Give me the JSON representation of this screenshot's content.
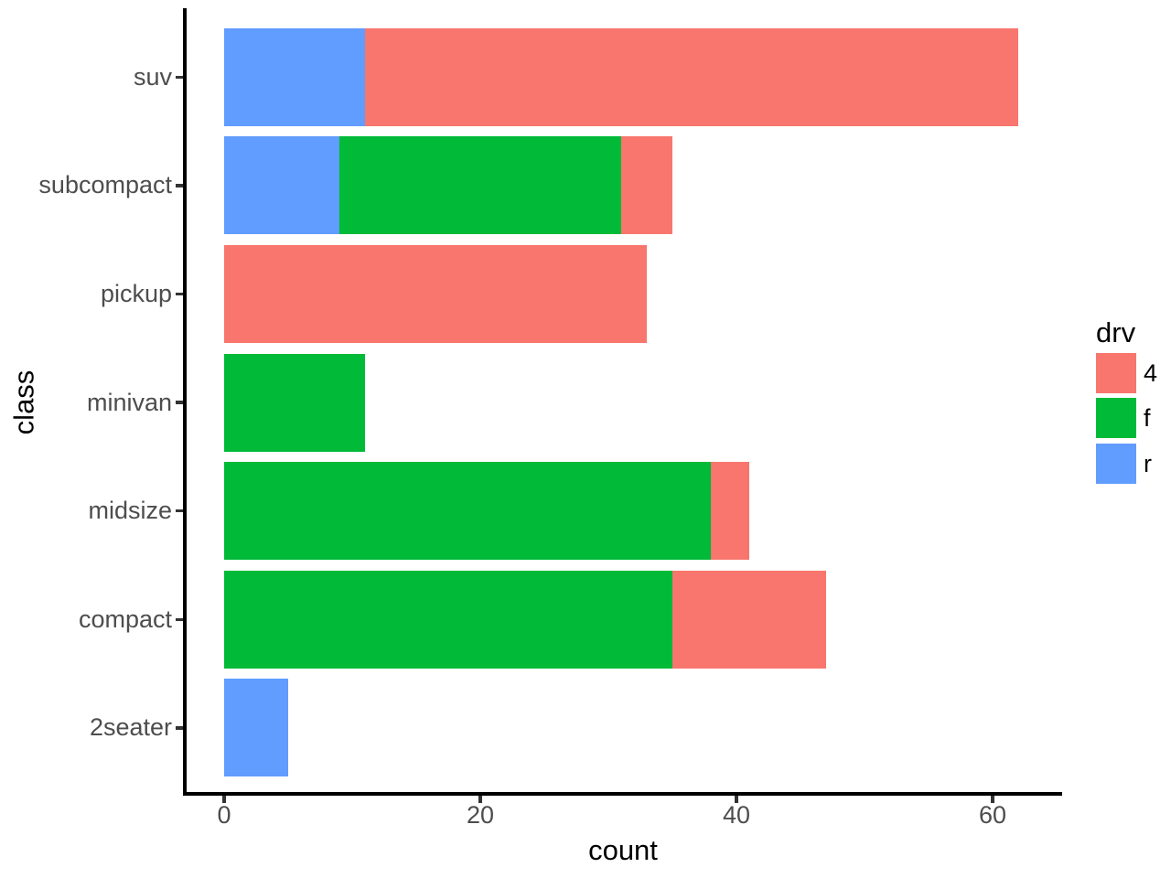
{
  "chart_data": {
    "type": "bar",
    "orientation": "horizontal",
    "stacked": true,
    "title": "",
    "xlabel": "count",
    "ylabel": "class",
    "xlim": [
      0,
      65
    ],
    "x_ticks": [
      0,
      20,
      40,
      60
    ],
    "grid": false,
    "background": "#ffffff",
    "categories": [
      "suv",
      "subcompact",
      "pickup",
      "minivan",
      "midsize",
      "compact",
      "2seater"
    ],
    "series": [
      {
        "name": "4",
        "color": "#F8766D",
        "values": [
          51,
          4,
          33,
          0,
          3,
          12,
          0
        ]
      },
      {
        "name": "f",
        "color": "#00BA38",
        "values": [
          0,
          22,
          0,
          11,
          38,
          35,
          0
        ]
      },
      {
        "name": "r",
        "color": "#619CFF",
        "values": [
          11,
          9,
          0,
          0,
          0,
          0,
          5
        ]
      }
    ],
    "stack_order_from_zero": [
      "r",
      "f",
      "4"
    ],
    "legend": {
      "title": "drv",
      "position": "right",
      "entries": [
        {
          "label": "4",
          "color": "#F8766D"
        },
        {
          "label": "f",
          "color": "#00BA38"
        },
        {
          "label": "r",
          "color": "#619CFF"
        }
      ]
    },
    "style_colors": {
      "axis_text": "#4D4D4D",
      "axis_title": "#000000",
      "axis_line": "#000000",
      "tick_mark": "#333333"
    }
  }
}
